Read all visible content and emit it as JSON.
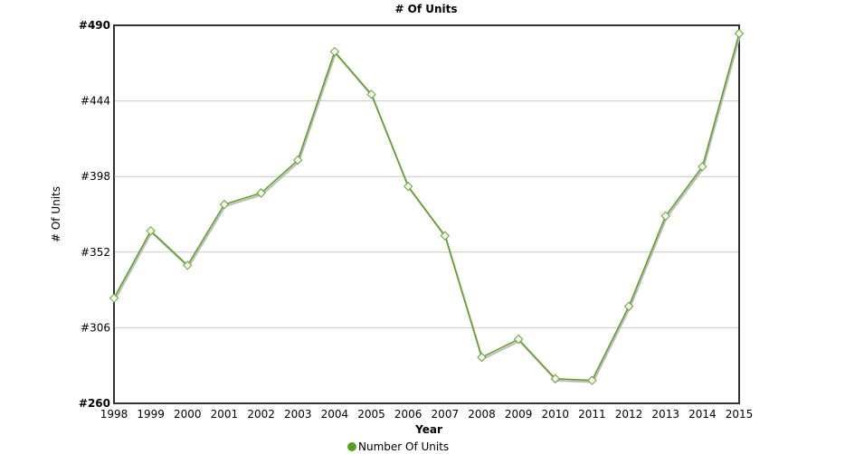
{
  "chart_data": {
    "type": "line",
    "title": "# Of Units",
    "xlabel": "Year",
    "ylabel": "# Of Units",
    "categories": [
      "1998",
      "1999",
      "2000",
      "2001",
      "2002",
      "2003",
      "2004",
      "2005",
      "2006",
      "2007",
      "2008",
      "2009",
      "2010",
      "2011",
      "2012",
      "2013",
      "2014",
      "2015"
    ],
    "series": [
      {
        "name": "Number Of Units",
        "color": "#5a9e1e",
        "values": [
          324,
          365,
          344,
          381,
          388,
          408,
          474,
          448,
          392,
          362,
          288,
          299,
          275,
          274,
          319,
          374,
          404,
          485
        ]
      }
    ],
    "ylim": [
      260,
      490
    ],
    "yticks": [
      "#260",
      "#306",
      "#352",
      "#398",
      "#444",
      "#490"
    ],
    "ytick_values": [
      260,
      306,
      352,
      398,
      444,
      490
    ],
    "grid": true,
    "legend": "bottom",
    "marker": "diamond"
  }
}
